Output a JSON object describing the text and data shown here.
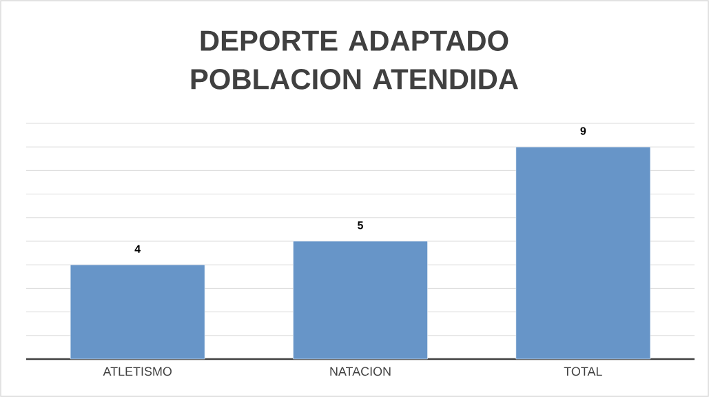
{
  "chart_data": {
    "type": "bar",
    "title": "DEPORTE ADAPTADO  POBLACION ATENDIDA",
    "categories": [
      "ATLETISMO",
      "NATACION",
      "TOTAL"
    ],
    "values": [
      4,
      5,
      9
    ],
    "color": "#6795c8",
    "ylim": [
      0,
      10
    ],
    "yticks": [
      {
        "value": 0,
        "label": null
      },
      {
        "value": 1,
        "label": null
      },
      {
        "value": 2,
        "label": null
      },
      {
        "value": 3,
        "label": null
      },
      {
        "value": 4,
        "label": null
      },
      {
        "value": 5,
        "label": null
      },
      {
        "value": 6,
        "label": null
      },
      {
        "value": 7,
        "label": null
      },
      {
        "value": 8,
        "label": null
      },
      {
        "value": 9,
        "label": null
      },
      {
        "value": 10,
        "label": null
      }
    ],
    "grid": "y",
    "tick_labels": "x",
    "data_labels": true
  }
}
